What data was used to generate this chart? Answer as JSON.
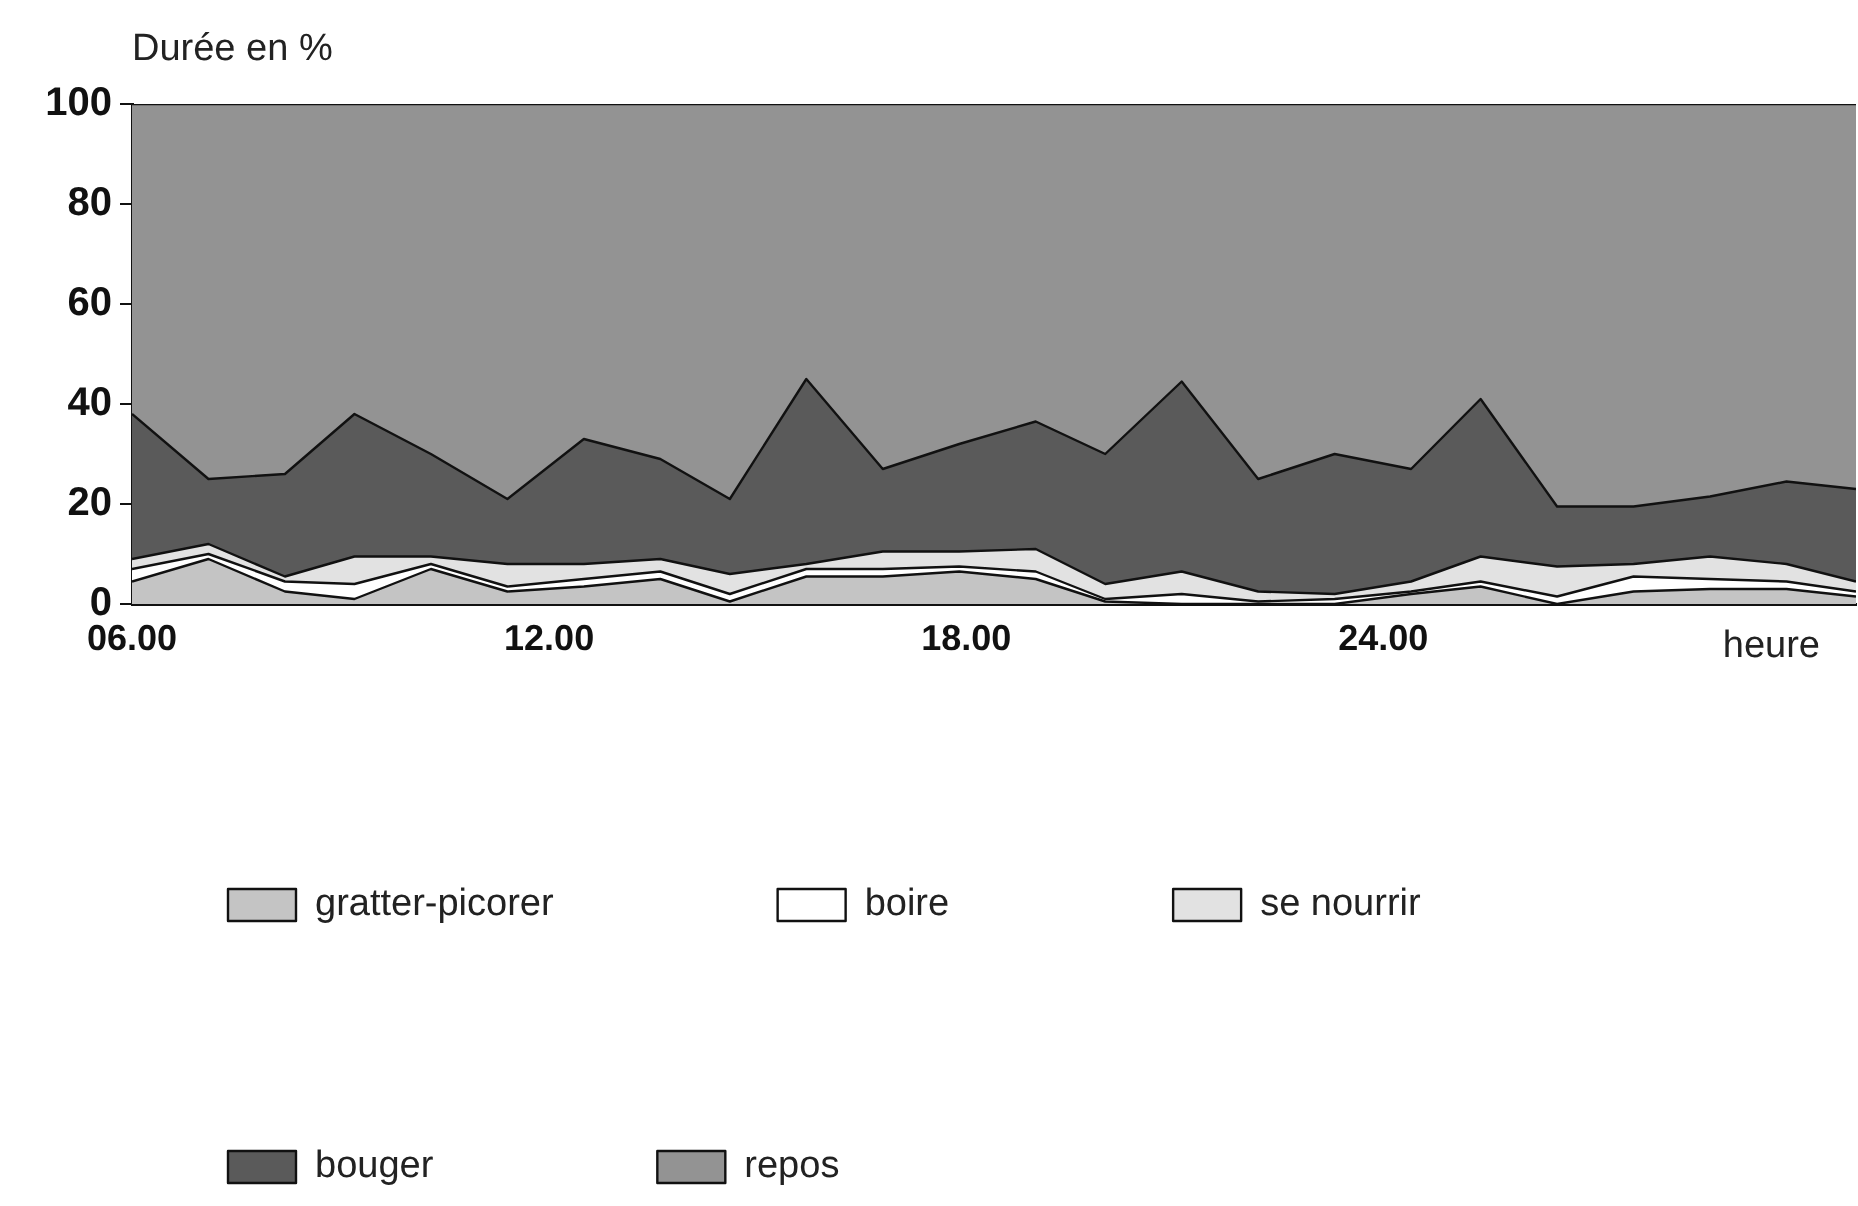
{
  "chart_data": {
    "type": "area",
    "stacked": true,
    "ylabel": "Durée en %",
    "xlabel": "heure",
    "x": [
      6,
      7.1,
      8.2,
      9.2,
      10.3,
      11.4,
      12.5,
      13.6,
      14.6,
      15.7,
      16.8,
      17.9,
      19.0,
      20.0,
      21.1,
      22.2,
      23.3,
      24.4,
      25.4,
      26.5,
      27.6,
      28.7,
      29.8,
      30.8
    ],
    "xlim": [
      6,
      30.8
    ],
    "xticks": [
      {
        "value": 6,
        "label": "06.00"
      },
      {
        "value": 12,
        "label": "12.00"
      },
      {
        "value": 18,
        "label": "18.00"
      },
      {
        "value": 24,
        "label": "24.00"
      }
    ],
    "ylim": [
      0,
      100
    ],
    "yticks": [
      0,
      20,
      40,
      60,
      80,
      100
    ],
    "grid": false,
    "legend": "bottom",
    "series": [
      {
        "name": "gratter-picorer",
        "color": "#c4c4c4",
        "values": [
          4.5,
          9,
          2.5,
          1,
          7,
          2.5,
          3.5,
          5,
          0.5,
          5.5,
          5.5,
          6.5,
          5,
          0.5,
          0,
          0,
          0,
          2,
          3.5,
          0,
          2.5,
          3,
          3,
          1.5
        ]
      },
      {
        "name": "boire",
        "color": "#ffffff",
        "values": [
          2.5,
          1,
          2,
          3,
          1,
          1,
          1.5,
          1.5,
          1.5,
          1.5,
          1.5,
          1,
          1.5,
          0.5,
          2,
          0.5,
          1,
          0.5,
          1,
          1.5,
          3,
          2,
          1.5,
          1
        ]
      },
      {
        "name": "se nourrir",
        "color": "#e2e2e2",
        "values": [
          2,
          2,
          1,
          5.5,
          1.5,
          4.5,
          3,
          2.5,
          4,
          1,
          3.5,
          3,
          4.5,
          3,
          4.5,
          2,
          1,
          2,
          5,
          6,
          2.5,
          4.5,
          3.5,
          2
        ]
      },
      {
        "name": "bouger",
        "color": "#5a5a5a",
        "values": [
          29,
          13,
          20.5,
          28.5,
          20.5,
          13,
          25,
          20,
          15,
          37,
          16.5,
          21.5,
          25.5,
          26,
          38,
          22.5,
          28,
          22.5,
          31.5,
          12,
          11.5,
          12,
          16.5,
          18.5
        ]
      },
      {
        "name": "repos",
        "color": "#939393",
        "values": [
          62,
          75,
          74,
          62,
          70,
          79,
          67,
          71,
          79,
          55,
          73,
          68,
          63.5,
          70,
          55.5,
          75,
          70,
          73,
          59,
          80.5,
          80.5,
          78.5,
          75.5,
          77
        ]
      }
    ]
  }
}
